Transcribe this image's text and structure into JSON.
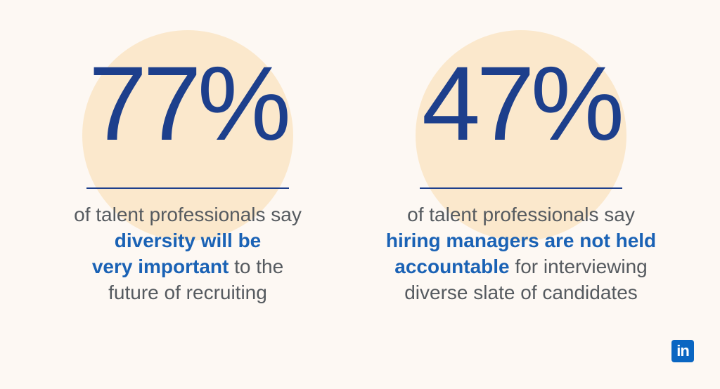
{
  "stats": [
    {
      "figure": "77%",
      "lines": [
        [
          {
            "text": "of talent professionals say"
          }
        ],
        [
          {
            "text": "diversity will be",
            "highlight": true
          }
        ],
        [
          {
            "text": "very important",
            "highlight": true
          },
          {
            "text": " to the"
          }
        ],
        [
          {
            "text": "future of recruiting"
          }
        ]
      ]
    },
    {
      "figure": "47%",
      "lines": [
        [
          {
            "text": "of talent professionals say"
          }
        ],
        [
          {
            "text": "hiring managers are not held",
            "highlight": true
          }
        ],
        [
          {
            "text": "accountable",
            "highlight": true
          },
          {
            "text": " for interviewing"
          }
        ],
        [
          {
            "text": "diverse slate of candidates"
          }
        ]
      ]
    }
  ],
  "logo": "in"
}
